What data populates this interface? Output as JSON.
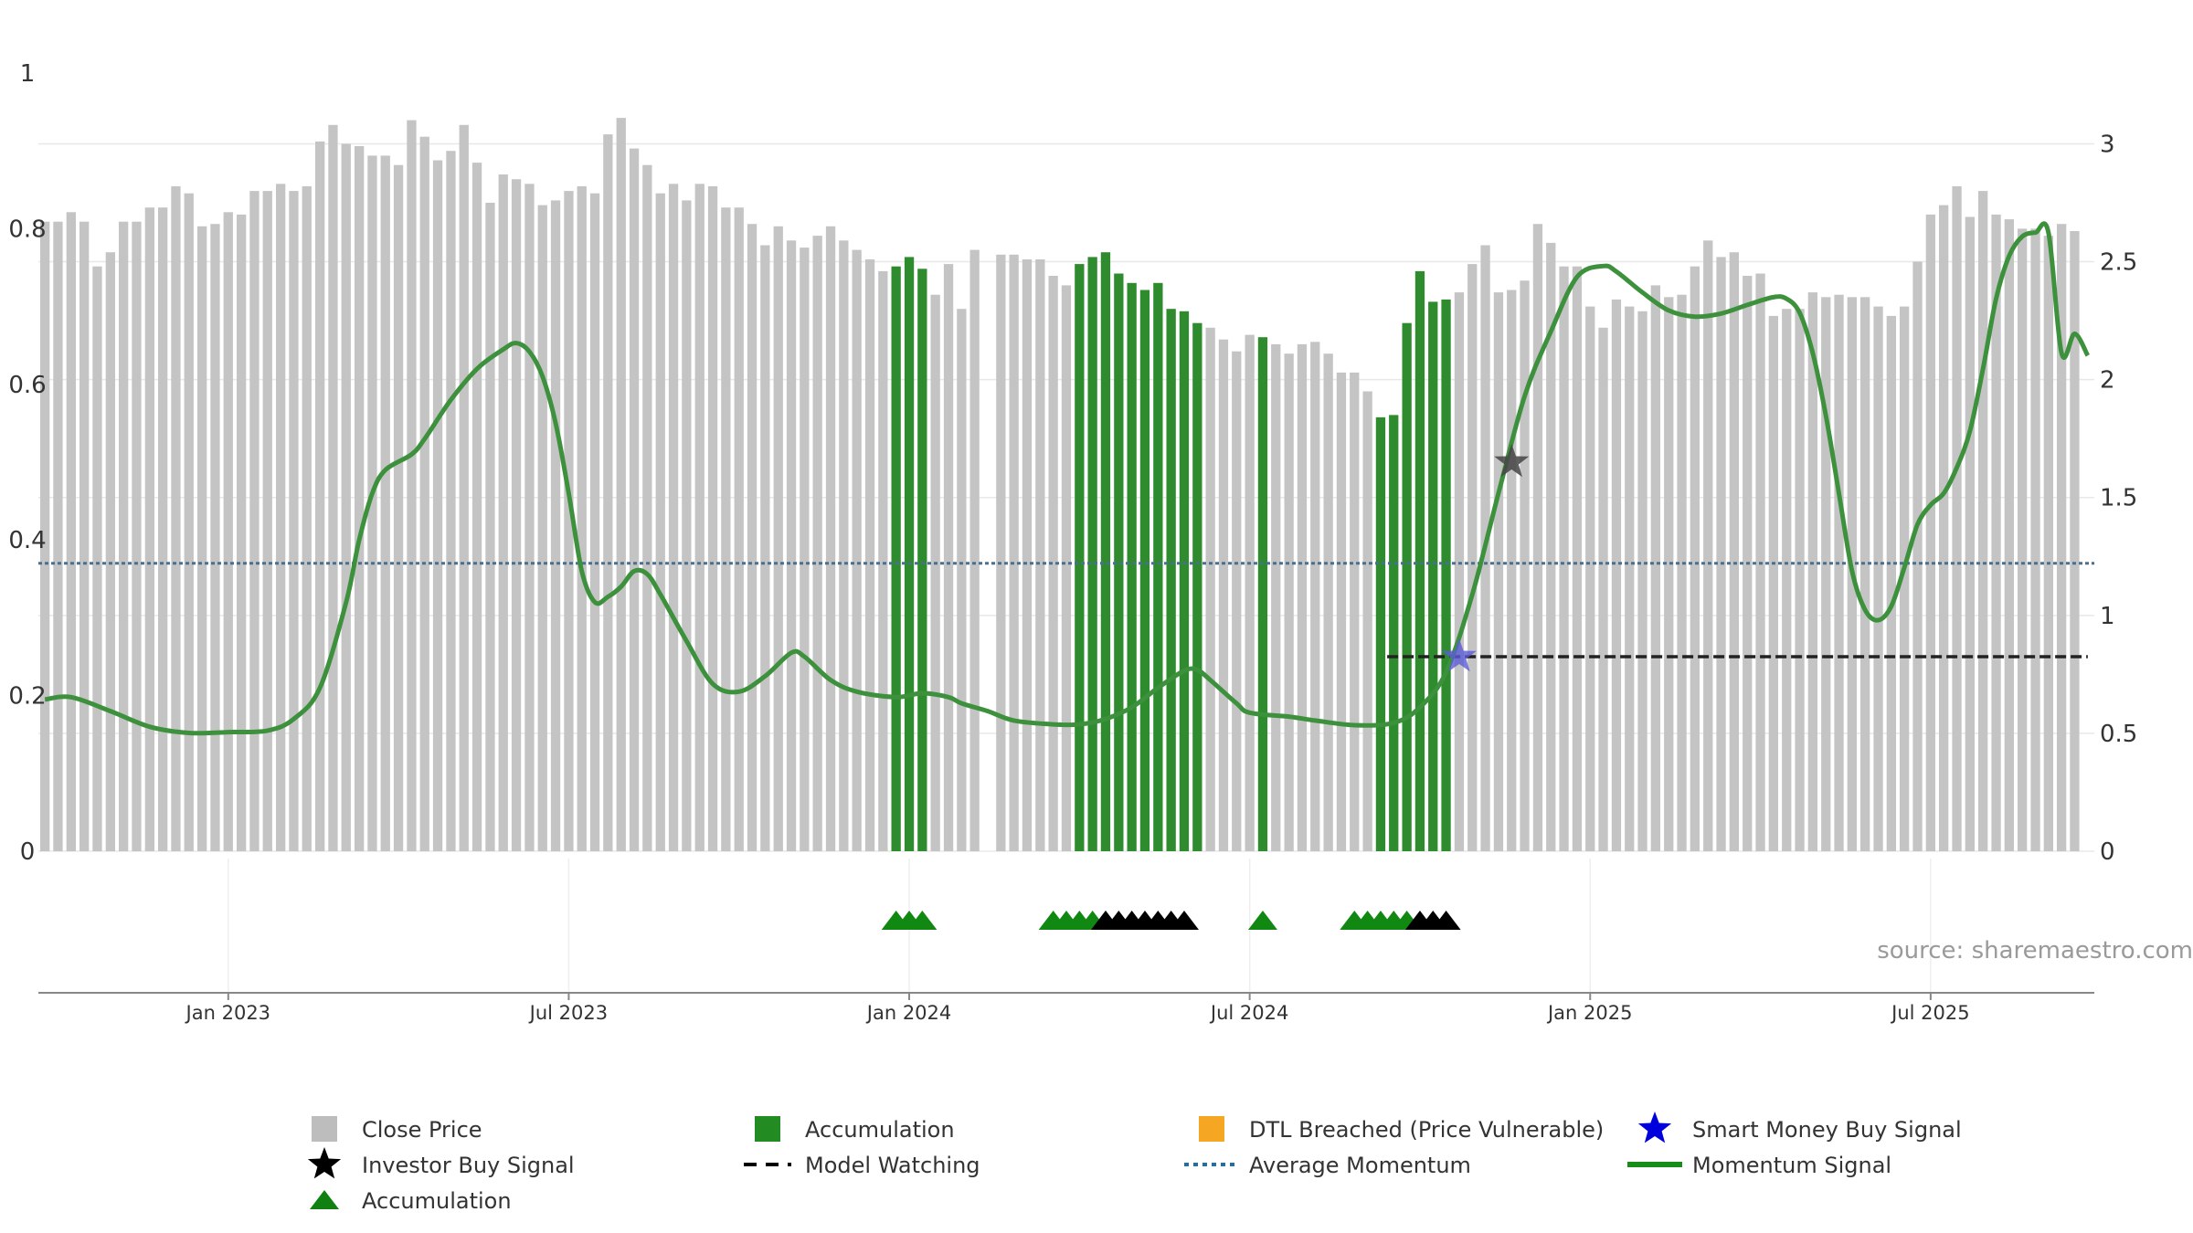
{
  "chart_data": {
    "type": "bar",
    "source": "source: sharemaestro.com",
    "left_axis": {
      "ticks": [
        0,
        0.2,
        0.4,
        0.6,
        0.8,
        1
      ],
      "tick_labels": [
        "0",
        "0.2",
        "0.4",
        "0.6",
        "0.8",
        "1"
      ],
      "ylim": [
        0,
        1
      ]
    },
    "right_axis": {
      "ticks": [
        0,
        0.5,
        1,
        1.5,
        2,
        2.5,
        3
      ],
      "tick_labels": [
        "0",
        "0.5",
        "1",
        "1.5",
        "2",
        "2.5",
        "3"
      ],
      "ylim": [
        0,
        3.3
      ]
    },
    "x_axis": {
      "ticks": [
        15,
        41,
        67,
        93,
        119,
        145
      ],
      "tick_labels": [
        "Jan 2023",
        "Jul 2023",
        "Jan 2024",
        "Jul 2024",
        "Jan 2025",
        "Jul 2025"
      ],
      "xlim": [
        0.5,
        157.5
      ]
    },
    "price_bars": [
      [
        1,
        2.67
      ],
      [
        2,
        2.67
      ],
      [
        3,
        2.71
      ],
      [
        4,
        2.67
      ],
      [
        5,
        2.48
      ],
      [
        6,
        2.54
      ],
      [
        7,
        2.67
      ],
      [
        8,
        2.67
      ],
      [
        9,
        2.73
      ],
      [
        10,
        2.73
      ],
      [
        11,
        2.82
      ],
      [
        12,
        2.79
      ],
      [
        13,
        2.65
      ],
      [
        14,
        2.66
      ],
      [
        15,
        2.71
      ],
      [
        16,
        2.7
      ],
      [
        17,
        2.8
      ],
      [
        18,
        2.8
      ],
      [
        19,
        2.83
      ],
      [
        20,
        2.8
      ],
      [
        21,
        2.82
      ],
      [
        22,
        3.01
      ],
      [
        23,
        3.08
      ],
      [
        24,
        3.0
      ],
      [
        25,
        2.99
      ],
      [
        26,
        2.95
      ],
      [
        27,
        2.95
      ],
      [
        28,
        2.91
      ],
      [
        29,
        3.1
      ],
      [
        30,
        3.03
      ],
      [
        31,
        2.93
      ],
      [
        32,
        2.97
      ],
      [
        33,
        3.08
      ],
      [
        34,
        2.92
      ],
      [
        35,
        2.75
      ],
      [
        36,
        2.87
      ],
      [
        37,
        2.85
      ],
      [
        38,
        2.83
      ],
      [
        39,
        2.74
      ],
      [
        40,
        2.76
      ],
      [
        41,
        2.8
      ],
      [
        42,
        2.82
      ],
      [
        43,
        2.79
      ],
      [
        44,
        3.04
      ],
      [
        45,
        3.11
      ],
      [
        46,
        2.98
      ],
      [
        47,
        2.91
      ],
      [
        48,
        2.79
      ],
      [
        49,
        2.83
      ],
      [
        50,
        2.76
      ],
      [
        51,
        2.83
      ],
      [
        52,
        2.82
      ],
      [
        53,
        2.73
      ],
      [
        54,
        2.73
      ],
      [
        55,
        2.66
      ],
      [
        56,
        2.57
      ],
      [
        57,
        2.65
      ],
      [
        58,
        2.59
      ],
      [
        59,
        2.56
      ],
      [
        60,
        2.61
      ],
      [
        61,
        2.65
      ],
      [
        62,
        2.59
      ],
      [
        63,
        2.55
      ],
      [
        64,
        2.51
      ],
      [
        65,
        2.46
      ],
      [
        66,
        2.48
      ],
      [
        67,
        2.52
      ],
      [
        68,
        2.47
      ],
      [
        69,
        2.36
      ],
      [
        70,
        2.49
      ],
      [
        71,
        2.3
      ],
      [
        72,
        2.55
      ],
      [
        74,
        2.53
      ],
      [
        75,
        2.53
      ],
      [
        76,
        2.51
      ],
      [
        77,
        2.51
      ],
      [
        78,
        2.44
      ],
      [
        79,
        2.4
      ],
      [
        80,
        2.49
      ],
      [
        81,
        2.52
      ],
      [
        82,
        2.54
      ],
      [
        83,
        2.45
      ],
      [
        84,
        2.41
      ],
      [
        85,
        2.38
      ],
      [
        86,
        2.41
      ],
      [
        87,
        2.3
      ],
      [
        88,
        2.29
      ],
      [
        89,
        2.24
      ],
      [
        90,
        2.22
      ],
      [
        91,
        2.17
      ],
      [
        92,
        2.12
      ],
      [
        93,
        2.19
      ],
      [
        94,
        2.18
      ],
      [
        95,
        2.15
      ],
      [
        96,
        2.11
      ],
      [
        97,
        2.15
      ],
      [
        98,
        2.16
      ],
      [
        99,
        2.11
      ],
      [
        100,
        2.03
      ],
      [
        101,
        2.03
      ],
      [
        102,
        1.95
      ],
      [
        103,
        1.84
      ],
      [
        104,
        1.85
      ],
      [
        105,
        2.24
      ],
      [
        106,
        2.46
      ],
      [
        107,
        2.33
      ],
      [
        108,
        2.34
      ],
      [
        109,
        2.37
      ],
      [
        110,
        2.49
      ],
      [
        111,
        2.57
      ],
      [
        112,
        2.37
      ],
      [
        113,
        2.38
      ],
      [
        114,
        2.42
      ],
      [
        115,
        2.66
      ],
      [
        116,
        2.58
      ],
      [
        117,
        2.48
      ],
      [
        118,
        2.48
      ],
      [
        119,
        2.31
      ],
      [
        120,
        2.22
      ],
      [
        121,
        2.34
      ],
      [
        122,
        2.31
      ],
      [
        123,
        2.29
      ],
      [
        124,
        2.4
      ],
      [
        125,
        2.35
      ],
      [
        126,
        2.36
      ],
      [
        127,
        2.48
      ],
      [
        128,
        2.59
      ],
      [
        129,
        2.52
      ],
      [
        130,
        2.54
      ],
      [
        131,
        2.44
      ],
      [
        132,
        2.45
      ],
      [
        133,
        2.27
      ],
      [
        134,
        2.3
      ],
      [
        135,
        2.3
      ],
      [
        136,
        2.37
      ],
      [
        137,
        2.35
      ],
      [
        138,
        2.36
      ],
      [
        139,
        2.35
      ],
      [
        140,
        2.35
      ],
      [
        141,
        2.31
      ],
      [
        142,
        2.27
      ],
      [
        143,
        2.31
      ],
      [
        144,
        2.5
      ],
      [
        145,
        2.7
      ],
      [
        146,
        2.74
      ],
      [
        147,
        2.82
      ],
      [
        148,
        2.69
      ],
      [
        149,
        2.8
      ],
      [
        150,
        2.7
      ],
      [
        151,
        2.68
      ],
      [
        152,
        2.64
      ],
      [
        153,
        2.64
      ],
      [
        154,
        2.61
      ],
      [
        155,
        2.66
      ],
      [
        156,
        2.63
      ]
    ],
    "accumulation_bars": [
      66,
      67,
      68,
      80,
      81,
      82,
      83,
      84,
      85,
      86,
      87,
      88,
      89,
      94,
      103,
      104,
      105,
      106,
      107,
      108
    ],
    "accumulation_triangles": [
      66,
      67,
      68,
      78,
      79,
      80,
      81,
      82,
      94,
      101,
      102,
      103,
      104,
      105
    ],
    "model_watching_triangles": [
      82,
      83,
      84,
      85,
      86,
      87,
      88,
      106,
      107,
      108
    ],
    "momentum_line": [
      [
        1,
        0.195
      ],
      [
        3,
        0.198
      ],
      [
        6,
        0.18
      ],
      [
        9,
        0.16
      ],
      [
        12,
        0.152
      ],
      [
        15,
        0.153
      ],
      [
        18,
        0.155
      ],
      [
        20,
        0.17
      ],
      [
        22,
        0.21
      ],
      [
        24,
        0.32
      ],
      [
        25,
        0.4
      ],
      [
        26,
        0.46
      ],
      [
        27,
        0.49
      ],
      [
        29,
        0.51
      ],
      [
        30,
        0.53
      ],
      [
        32,
        0.58
      ],
      [
        34,
        0.62
      ],
      [
        36,
        0.645
      ],
      [
        37,
        0.653
      ],
      [
        38,
        0.642
      ],
      [
        39,
        0.61
      ],
      [
        40,
        0.55
      ],
      [
        41,
        0.46
      ],
      [
        42,
        0.36
      ],
      [
        43,
        0.32
      ],
      [
        44,
        0.327
      ],
      [
        45,
        0.34
      ],
      [
        46,
        0.36
      ],
      [
        47,
        0.356
      ],
      [
        48,
        0.33
      ],
      [
        50,
        0.27
      ],
      [
        52,
        0.215
      ],
      [
        54,
        0.205
      ],
      [
        56,
        0.225
      ],
      [
        58,
        0.255
      ],
      [
        59,
        0.25
      ],
      [
        61,
        0.22
      ],
      [
        63,
        0.205
      ],
      [
        66,
        0.198
      ],
      [
        68,
        0.203
      ],
      [
        70,
        0.198
      ],
      [
        71,
        0.19
      ],
      [
        73,
        0.18
      ],
      [
        75,
        0.168
      ],
      [
        78,
        0.163
      ],
      [
        80,
        0.163
      ],
      [
        82,
        0.17
      ],
      [
        84,
        0.185
      ],
      [
        86,
        0.21
      ],
      [
        88,
        0.232
      ],
      [
        89,
        0.233
      ],
      [
        90,
        0.22
      ],
      [
        92,
        0.19
      ],
      [
        93,
        0.178
      ],
      [
        96,
        0.173
      ],
      [
        98,
        0.168
      ],
      [
        101,
        0.162
      ],
      [
        104,
        0.165
      ],
      [
        106,
        0.185
      ],
      [
        108,
        0.23
      ],
      [
        110,
        0.33
      ],
      [
        112,
        0.46
      ],
      [
        114,
        0.585
      ],
      [
        116,
        0.668
      ],
      [
        118,
        0.738
      ],
      [
        120,
        0.752
      ],
      [
        121,
        0.745
      ],
      [
        123,
        0.718
      ],
      [
        125,
        0.695
      ],
      [
        127,
        0.687
      ],
      [
        129,
        0.691
      ],
      [
        131,
        0.702
      ],
      [
        133,
        0.712
      ],
      [
        134,
        0.71
      ],
      [
        135,
        0.692
      ],
      [
        136,
        0.64
      ],
      [
        137,
        0.56
      ],
      [
        138,
        0.46
      ],
      [
        139,
        0.36
      ],
      [
        140,
        0.31
      ],
      [
        141,
        0.297
      ],
      [
        142,
        0.315
      ],
      [
        143,
        0.365
      ],
      [
        144,
        0.42
      ],
      [
        145,
        0.445
      ],
      [
        146,
        0.46
      ],
      [
        147,
        0.493
      ],
      [
        148,
        0.54
      ],
      [
        149,
        0.62
      ],
      [
        150,
        0.71
      ],
      [
        151,
        0.765
      ],
      [
        152,
        0.79
      ],
      [
        153,
        0.795
      ],
      [
        154,
        0.795
      ],
      [
        155,
        0.64
      ],
      [
        156,
        0.665
      ],
      [
        157,
        0.637
      ]
    ],
    "average_momentum": 0.37,
    "model_watching_line": {
      "value": 0.25,
      "x_start": 103.5,
      "x_end": 157
    },
    "investor_buy_signal": {
      "x": 113,
      "y": 0.5
    },
    "smart_money_buy_signal": {
      "x": 109,
      "y": 0.25
    },
    "legend": [
      {
        "label": "Close Price",
        "color": "#bdbdbd",
        "symbol": "square"
      },
      {
        "label": "Accumulation",
        "color": "#228b22",
        "symbol": "square"
      },
      {
        "label": "DTL Breached (Price Vulnerable)",
        "color": "#f5a623",
        "symbol": "square"
      },
      {
        "label": "Smart Money Buy Signal",
        "color": "#0000dd",
        "symbol": "star"
      },
      {
        "label": "Investor Buy Signal",
        "color": "#000000",
        "symbol": "star"
      },
      {
        "label": "Model Watching",
        "color": "#000000",
        "symbol": "dash"
      },
      {
        "label": "Average Momentum",
        "color": "#1f6fa8",
        "symbol": "dot"
      },
      {
        "label": "Momentum Signal",
        "color": "#188c18",
        "symbol": "line"
      },
      {
        "label": "Accumulation",
        "color": "#108010",
        "symbol": "triangle"
      }
    ],
    "colors": {
      "price": "#c4c4c4",
      "accumulation": "#2e8b2e",
      "momentum": "#3d913d",
      "average": "#4a7090",
      "grid": "#e8e8e8",
      "axis": "#888888"
    }
  }
}
